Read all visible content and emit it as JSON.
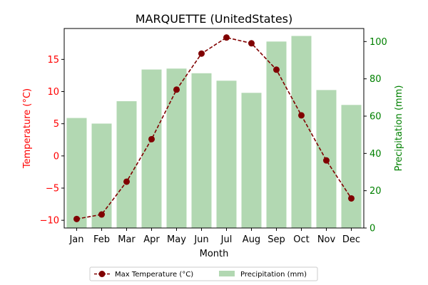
{
  "chart_data": {
    "type": "bar+line",
    "title": "MARQUETTE (UnitedStates)",
    "xlabel": "Month",
    "categories": [
      "Jan",
      "Feb",
      "Mar",
      "Apr",
      "May",
      "Jun",
      "Jul",
      "Aug",
      "Sep",
      "Oct",
      "Nov",
      "Dec"
    ],
    "left_axis": {
      "label": "Temperature (°C)",
      "ylim": [
        -11.2,
        19.8
      ],
      "ticks": [
        -10,
        -5,
        0,
        5,
        10,
        15
      ],
      "tick_labels": [
        "−10",
        "−5",
        "0",
        "5",
        "10",
        "15"
      ],
      "color": "#ff0000"
    },
    "right_axis": {
      "label": "Precipitation (mm)",
      "ylim": [
        0,
        107
      ],
      "ticks": [
        0,
        20,
        40,
        60,
        80,
        100
      ],
      "tick_labels": [
        "0",
        "20",
        "40",
        "60",
        "80",
        "100"
      ],
      "color": "#008000"
    },
    "series": [
      {
        "name": "Max Temperature (°C)",
        "axis": "left",
        "kind": "line",
        "color": "#800000",
        "values": [
          -9.8,
          -9.1,
          -4.0,
          2.6,
          10.3,
          15.9,
          18.4,
          17.5,
          13.4,
          6.3,
          -0.7,
          -6.6
        ]
      },
      {
        "name": "Precipitation (mm)",
        "axis": "right",
        "kind": "bar",
        "color": "#b2d8b2",
        "values": [
          59,
          56,
          68,
          85,
          85.5,
          83,
          79,
          72.5,
          100,
          103,
          74,
          66
        ]
      }
    ],
    "legend": {
      "position": "bottom-center"
    },
    "grid": false
  }
}
